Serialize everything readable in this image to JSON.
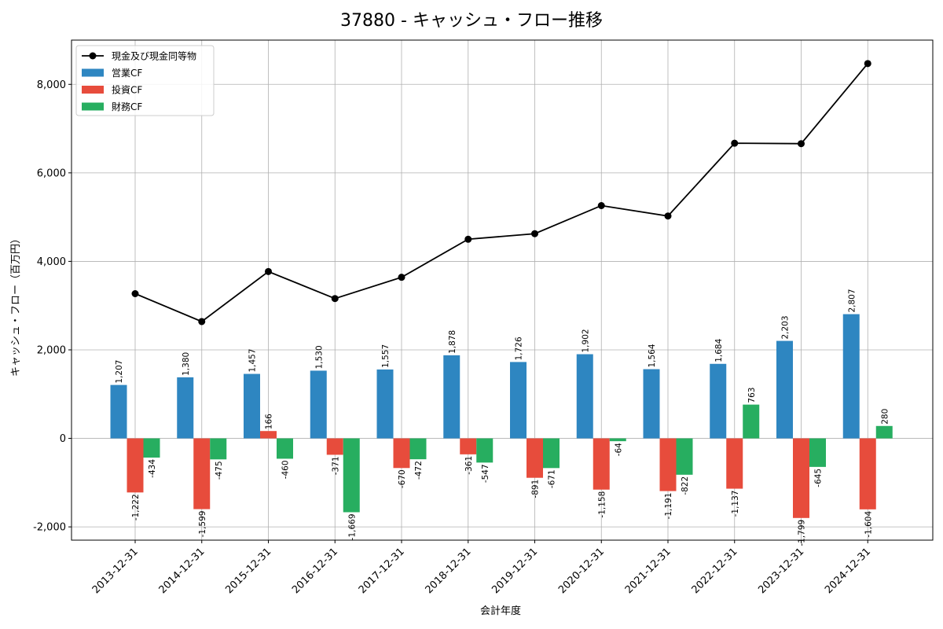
{
  "chart_data": {
    "type": "bar",
    "title": "37880 - キャッシュ・フロー推移",
    "xlabel": "会計年度",
    "ylabel": "キャッシュ・フロー（百万円）",
    "categories": [
      "2013-12-31",
      "2014-12-31",
      "2015-12-31",
      "2016-12-31",
      "2017-12-31",
      "2018-12-31",
      "2019-12-31",
      "2020-12-31",
      "2021-12-31",
      "2022-12-31",
      "2023-12-31",
      "2024-12-31"
    ],
    "ylim": [
      -2300,
      9000
    ],
    "yticks": [
      -2000,
      0,
      2000,
      4000,
      6000,
      8000
    ],
    "ytick_labels": [
      "-2,000",
      "0",
      "2,000",
      "4,000",
      "6,000",
      "8,000"
    ],
    "grid": true,
    "legend_position": "top-left",
    "series": [
      {
        "name": "営業CF",
        "kind": "bar",
        "color": "#2e86c1",
        "values": [
          1207,
          1380,
          1457,
          1530,
          1557,
          1878,
          1726,
          1902,
          1564,
          1684,
          2203,
          2807
        ],
        "labels": [
          "1,207",
          "1,380",
          "1,457",
          "1,530",
          "1,557",
          "1,878",
          "1,726",
          "1,902",
          "1,564",
          "1,684",
          "2,203",
          "2,807"
        ]
      },
      {
        "name": "投資CF",
        "kind": "bar",
        "color": "#e74c3c",
        "values": [
          -1222,
          -1599,
          166,
          -371,
          -670,
          -361,
          -891,
          -1158,
          -1191,
          -1137,
          -1799,
          -1604
        ],
        "labels": [
          "-1,222",
          "-1,599",
          "166",
          "-371",
          "-670",
          "-361",
          "-891",
          "-1,158",
          "-1,191",
          "-1,137",
          "-1,799",
          "-1,604"
        ]
      },
      {
        "name": "財務CF",
        "kind": "bar",
        "color": "#27ae60",
        "values": [
          -434,
          -475,
          -460,
          -1669,
          -472,
          -547,
          -671,
          -64,
          -822,
          763,
          -645,
          280
        ],
        "labels": [
          "-434",
          "-475",
          "-460",
          "-1,669",
          "-472",
          "-547",
          "-671",
          "-64",
          "-822",
          "763",
          "-645",
          "280"
        ]
      },
      {
        "name": "現金及び現金同等物",
        "kind": "line",
        "color": "#000000",
        "values": [
          3270,
          2640,
          3770,
          3160,
          3640,
          4500,
          4625,
          5260,
          5025,
          6670,
          6660,
          8470
        ]
      }
    ]
  }
}
